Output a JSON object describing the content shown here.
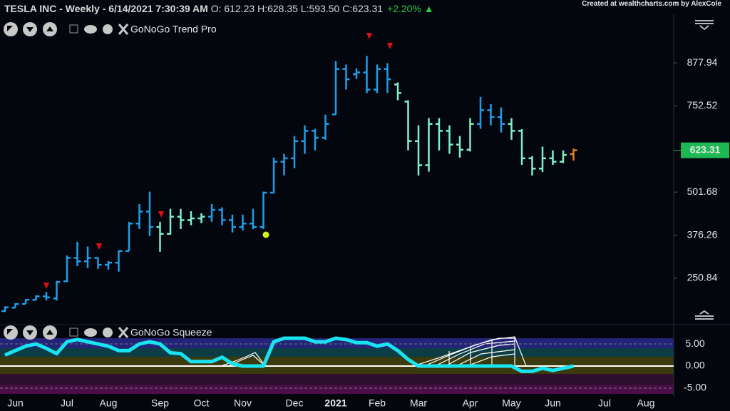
{
  "header": {
    "title": "TESLA INC - Weekly - 6/14/2021 7:30:39 AM",
    "ohlc": "O: 612.23 H:628.35 L:593.50 C:623.31",
    "change": "+2.20%"
  },
  "credit": "Created at wealthcharts.com by AlexCole",
  "indicators": {
    "trend": "GoNoGo Trend Pro",
    "squeeze": "GoNoGo Squeeze"
  },
  "chart_data": [
    {
      "type": "ohlc",
      "categories": [
        null,
        "Jun",
        null,
        null,
        null,
        null,
        "Jul",
        null,
        null,
        null,
        "Aug",
        null,
        null,
        null,
        null,
        "Sep",
        null,
        null,
        null,
        "Oct",
        null,
        null,
        null,
        "Nov",
        null,
        null,
        null,
        null,
        "Dec",
        null,
        null,
        null,
        "2021",
        null,
        null,
        null,
        "Feb",
        null,
        null,
        null,
        "Mar",
        null,
        null,
        null,
        null,
        "Apr",
        null,
        null,
        null,
        "May",
        null,
        null,
        null,
        "Jun",
        null,
        null,
        null,
        null,
        "Jul",
        null,
        null,
        null,
        "Aug",
        null
      ],
      "open": [
        155,
        165,
        176,
        188,
        198,
        192,
        242,
        310,
        300,
        310,
        290,
        296,
        330,
        410,
        445,
        400,
        380,
        430,
        420,
        425,
        430,
        450,
        420,
        400,
        410,
        400,
        500,
        590,
        600,
        650,
        680,
        660,
        728,
        860,
        845,
        850,
        800,
        860,
        815,
        765,
        650,
        580,
        700,
        680,
        640,
        625,
        700,
        740,
        720,
        700,
        680,
        600,
        570,
        600,
        590,
        612.23,
        null,
        null,
        null,
        null,
        null,
        null,
        null,
        null
      ],
      "high": [
        169,
        178,
        190,
        201,
        211,
        243,
        317,
        357,
        343,
        311,
        301,
        332,
        415,
        467,
        503,
        415,
        453,
        453,
        446,
        440,
        467,
        457,
        436,
        436,
        453,
        503,
        602,
        613,
        665,
        696,
        686,
        727,
        883,
        873,
        862,
        898,
        873,
        877,
        821,
        769,
        696,
        717,
        717,
        696,
        665,
        717,
        779,
        758,
        748,
        717,
        685,
        606,
        634,
        623,
        623,
        628.35,
        null,
        null,
        null,
        null,
        null,
        null,
        null,
        null
      ],
      "low": [
        153,
        165,
        176,
        186,
        186,
        186,
        240,
        286,
        280,
        278,
        276,
        270,
        330,
        394,
        374,
        328,
        378,
        394,
        405,
        411,
        415,
        405,
        384,
        390,
        394,
        394,
        498,
        550,
        571,
        613,
        623,
        654,
        727,
        800,
        831,
        790,
        790,
        790,
        769,
        623,
        550,
        561,
        623,
        613,
        602,
        620,
        686,
        696,
        675,
        654,
        581,
        550,
        560,
        581,
        586,
        593.5,
        null,
        null,
        null,
        null,
        null,
        null,
        null,
        null
      ],
      "close": [
        166,
        176,
        188,
        198,
        195,
        240,
        310,
        300,
        310,
        290,
        296,
        330,
        410,
        445,
        400,
        380,
        430,
        420,
        425,
        430,
        450,
        420,
        400,
        410,
        400,
        500,
        590,
        600,
        650,
        680,
        660,
        700,
        860,
        830,
        850,
        800,
        860,
        830,
        790,
        650,
        580,
        700,
        680,
        640,
        625,
        700,
        740,
        720,
        700,
        680,
        600,
        570,
        600,
        590,
        610,
        623.31,
        null,
        null,
        null,
        null,
        null,
        null,
        null,
        null
      ],
      "bar_colors": [
        "#1f9de8",
        "#1f9de8",
        "#1f9de8",
        "#1f9de8",
        "#1f9de8",
        "#1f9de8",
        "#1f9de8",
        "#1f9de8",
        "#1f9de8",
        "#1f9de8",
        "#1f9de8",
        "#1f9de8",
        "#1f9de8",
        "#1f9de8",
        "#1f9de8",
        "#7ef0c8",
        "#7ef0c8",
        "#7ef0c8",
        "#7ef0c8",
        "#7ef0c8",
        "#1f9de8",
        "#1f9de8",
        "#1f9de8",
        "#1f9de8",
        "#1f9de8",
        "#1f9de8",
        "#1f9de8",
        "#1f9de8",
        "#1f9de8",
        "#1f9de8",
        "#1f9de8",
        "#1f9de8",
        "#1f9de8",
        "#1f9de8",
        "#1f9de8",
        "#1f9de8",
        "#1f9de8",
        "#1f9de8",
        "#7ef0c8",
        "#7ef0c8",
        "#7ef0c8",
        "#7ef0c8",
        "#7ef0c8",
        "#7ef0c8",
        "#7ef0c8",
        "#7ef0c8",
        "#1f9de8",
        "#1f9de8",
        "#1f9de8",
        "#7ef0c8",
        "#7ef0c8",
        "#7ef0c8",
        "#7ef0c8",
        "#7ef0c8",
        "#7ef0c8",
        "#e07b2a",
        null,
        null,
        null,
        null,
        null,
        null,
        null,
        null
      ],
      "ylim": [
        136.4,
        1019.4
      ],
      "yticks": [
        250.84,
        376.26,
        501.68,
        752.52,
        877.94
      ],
      "last_color": "#1db954"
    },
    {
      "type": "line",
      "values": [
        2.5,
        3.5,
        4.5,
        5,
        4,
        2.8,
        5.5,
        6,
        5.5,
        5,
        4.5,
        3.5,
        3.5,
        5,
        5.5,
        5,
        3,
        2.8,
        1,
        1,
        1,
        2,
        0.5,
        0,
        0,
        0,
        5.5,
        6.3,
        6.3,
        6.3,
        5.5,
        5.5,
        6.3,
        6,
        5.3,
        5.3,
        4.5,
        5,
        3.5,
        1.5,
        0,
        0,
        0,
        0,
        0,
        0,
        0,
        0,
        0,
        0,
        -1.2,
        -1.2,
        -0.5,
        -1,
        -0.5,
        0
      ],
      "color": "#19e3f0",
      "ylim": [
        -6.3,
        6.3
      ],
      "yticks": [
        {
          "value": 5,
          "label": "5.00"
        },
        {
          "value": 0,
          "label": "0.00"
        },
        {
          "value": -5,
          "label": "-5.00"
        }
      ]
    }
  ]
}
